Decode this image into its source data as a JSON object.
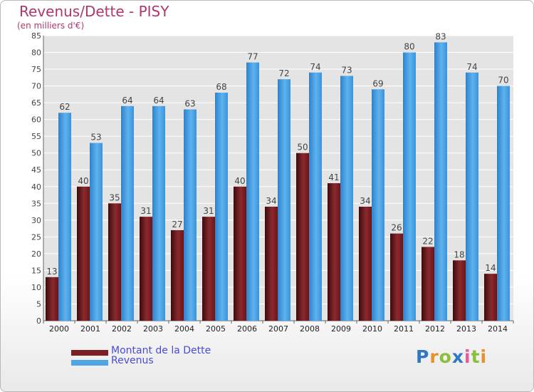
{
  "title": "Revenus/Dette - PISY",
  "subtitle": "(en milliers d'€)",
  "logo": {
    "letters": [
      {
        "ch": "P",
        "color": "#2f78c4"
      },
      {
        "ch": "r",
        "color": "#e8902a"
      },
      {
        "ch": "o",
        "color": "#8bbf3a"
      },
      {
        "ch": "x",
        "color": "#2f78c4"
      },
      {
        "ch": "i",
        "color": "#e05c9a"
      },
      {
        "ch": "t",
        "color": "#8bbf3a"
      },
      {
        "ch": "i",
        "color": "#e8902a"
      }
    ]
  },
  "chart_data": {
    "type": "bar",
    "categories": [
      "2000",
      "2001",
      "2002",
      "2003",
      "2004",
      "2005",
      "2006",
      "2007",
      "2008",
      "2009",
      "2010",
      "2011",
      "2012",
      "2013",
      "2014"
    ],
    "series": [
      {
        "name": "Montant de la Dette",
        "color": "#7a1f22",
        "values": [
          13,
          40,
          35,
          31,
          27,
          31,
          40,
          34,
          50,
          41,
          34,
          26,
          22,
          18,
          14
        ]
      },
      {
        "name": "Revenus",
        "color": "#4ea6e6",
        "values": [
          62,
          53,
          64,
          64,
          63,
          68,
          77,
          72,
          74,
          73,
          69,
          80,
          83,
          74,
          70
        ]
      }
    ],
    "ylim": [
      0,
      85
    ],
    "yticks": [
      0,
      5,
      10,
      15,
      20,
      25,
      30,
      35,
      40,
      45,
      50,
      55,
      60,
      65,
      70,
      75,
      80,
      85
    ],
    "grid": true,
    "legend": "bottom-left"
  }
}
